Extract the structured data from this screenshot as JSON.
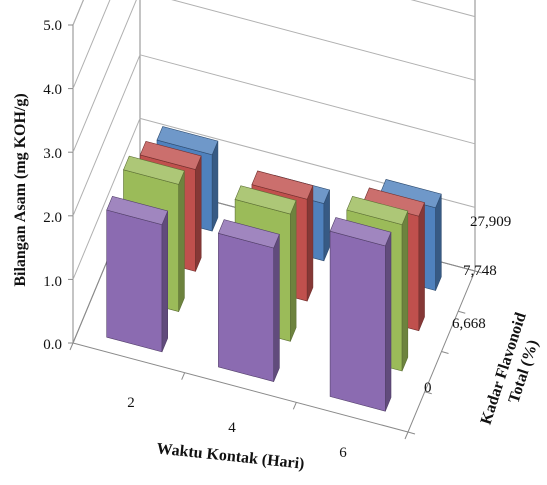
{
  "chart_data": {
    "type": "bar",
    "subtype": "3d-column",
    "categories": [
      "2",
      "4",
      "6"
    ],
    "series_axis_ticks": [
      "0",
      "6,668",
      "7,748",
      "27,909"
    ],
    "series": [
      {
        "values": [
          2.0,
          2.1,
          2.6
        ],
        "color": "#8B6BB1"
      },
      {
        "values": [
          2.0,
          2.0,
          2.3
        ],
        "color": "#9BBB59"
      },
      {
        "values": [
          1.6,
          1.6,
          1.8
        ],
        "color": "#C0504D"
      },
      {
        "values": [
          1.2,
          0.9,
          1.3
        ],
        "color": "#4F81BD"
      }
    ],
    "ylim": [
      0,
      5
    ],
    "yticks": [
      "0.0",
      "1.0",
      "2.0",
      "3.0",
      "4.0",
      "5.0"
    ],
    "xlabel": "Waktu Kontak (Hari)",
    "ylabel": "Bilangan Asam (mg KOH/g)",
    "zlabel_line1": "Kadar Flavonoid",
    "zlabel_line2": "Total (%)",
    "grid": true,
    "legend": "none"
  }
}
